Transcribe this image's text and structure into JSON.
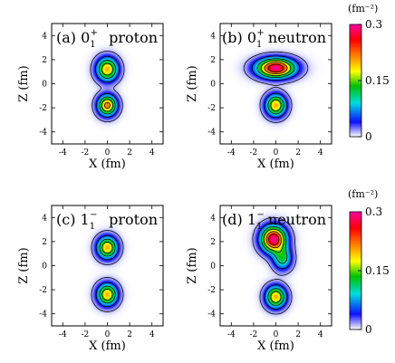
{
  "figure": {
    "colorbar_unit": "(fm⁻²)",
    "colorbar_ticks": [
      "0.3",
      "0.15",
      "0"
    ],
    "colorscale": [
      "#ffffff",
      "#1010ff",
      "#00dddd",
      "#00c000",
      "#ffff00",
      "#ff8000",
      "#ff0000",
      "#ff00a0"
    ]
  },
  "chart_data": [
    {
      "type": "heatmap",
      "panel": "(a)",
      "state": "0₁⁺",
      "nucleon": "proton",
      "xlabel": "X  (fm)",
      "ylabel": "Z  (fm)",
      "xlim": [
        -5,
        5
      ],
      "ylim": [
        -5,
        5
      ],
      "xticks": [
        -4,
        -2,
        0,
        2,
        4
      ],
      "yticks": [
        -4,
        -2,
        0,
        2,
        4
      ],
      "zlim": [
        0,
        0.3
      ],
      "peaks": [
        {
          "x": 0,
          "z": 1.2,
          "value": 0.2,
          "wx": 0.9,
          "wz": 0.9
        },
        {
          "x": 0,
          "z": -1.8,
          "value": 0.22,
          "wx": 0.8,
          "wz": 0.8
        }
      ]
    },
    {
      "type": "heatmap",
      "panel": "(b)",
      "state": "0₁⁺",
      "nucleon": "neutron",
      "xlabel": "X  (fm)",
      "ylabel": "Z  (fm)",
      "xlim": [
        -5,
        5
      ],
      "ylim": [
        -5,
        5
      ],
      "xticks": [
        -4,
        -2,
        0,
        2,
        4
      ],
      "yticks": [
        -4,
        -2,
        0,
        2,
        4
      ],
      "zlim": [
        0,
        0.3
      ],
      "peaks": [
        {
          "x": 0,
          "z": 1.3,
          "value": 0.3,
          "wx": 1.6,
          "wz": 0.75
        },
        {
          "x": 0,
          "z": -1.8,
          "value": 0.2,
          "wx": 0.85,
          "wz": 0.85
        }
      ]
    },
    {
      "type": "heatmap",
      "panel": "(c)",
      "state": "1₁⁻",
      "nucleon": "proton",
      "xlabel": "X  (fm)",
      "ylabel": "Z  (fm)",
      "xlim": [
        -5,
        5
      ],
      "ylim": [
        -5,
        5
      ],
      "xticks": [
        -4,
        -2,
        0,
        2,
        4
      ],
      "yticks": [
        -4,
        -2,
        0,
        2,
        4
      ],
      "zlim": [
        0,
        0.3
      ],
      "peaks": [
        {
          "x": 0,
          "z": 1.5,
          "value": 0.2,
          "wx": 0.85,
          "wz": 0.85
        },
        {
          "x": 0,
          "z": -2.4,
          "value": 0.2,
          "wx": 0.85,
          "wz": 0.85
        }
      ]
    },
    {
      "type": "heatmap",
      "panel": "(d)",
      "state": "1₁⁻",
      "nucleon": "neutron",
      "xlabel": "X  (fm)",
      "ylabel": "Z  (fm)",
      "xlim": [
        -5,
        5
      ],
      "ylim": [
        -5,
        5
      ],
      "xticks": [
        -4,
        -2,
        0,
        2,
        4
      ],
      "yticks": [
        -4,
        -2,
        0,
        2,
        4
      ],
      "zlim": [
        0,
        0.3
      ],
      "peaks": [
        {
          "x": -0.2,
          "z": 2.2,
          "value": 0.3,
          "wx": 1.05,
          "wz": 1.0
        },
        {
          "x": 0.6,
          "z": 0.6,
          "value": 0.12,
          "wx": 0.8,
          "wz": 0.9
        },
        {
          "x": 0,
          "z": -2.6,
          "value": 0.2,
          "wx": 0.85,
          "wz": 0.85
        }
      ]
    }
  ]
}
